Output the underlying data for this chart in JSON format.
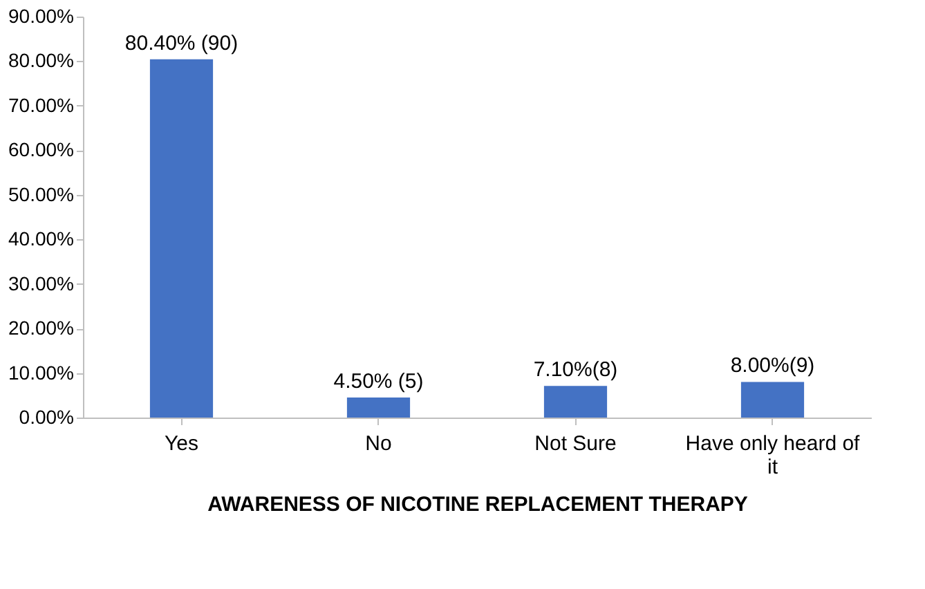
{
  "chart_data": {
    "type": "bar",
    "xlabel": "AWARENESS OF NICOTINE REPLACEMENT THERAPY",
    "categories": [
      "Yes",
      "No",
      "Not Sure",
      "Have only heard of it"
    ],
    "values": [
      80.4,
      4.5,
      7.1,
      8.0
    ],
    "value_labels": [
      "80.40% (90)",
      "4.50% (5)",
      "7.10%(8)",
      "8.00%(9)"
    ],
    "color": "#4472c4",
    "ylim": [
      0,
      90
    ],
    "yticks": [
      {
        "value": 0,
        "label": "0.00%"
      },
      {
        "value": 10,
        "label": "10.00%"
      },
      {
        "value": 20,
        "label": "20.00%"
      },
      {
        "value": 30,
        "label": "30.00%"
      },
      {
        "value": 40,
        "label": "40.00%"
      },
      {
        "value": 50,
        "label": "50.00%"
      },
      {
        "value": 60,
        "label": "60.00%"
      },
      {
        "value": 70,
        "label": "70.00%"
      },
      {
        "value": 80,
        "label": "80.00%"
      },
      {
        "value": 90,
        "label": "90.00%"
      }
    ],
    "grid": false
  }
}
